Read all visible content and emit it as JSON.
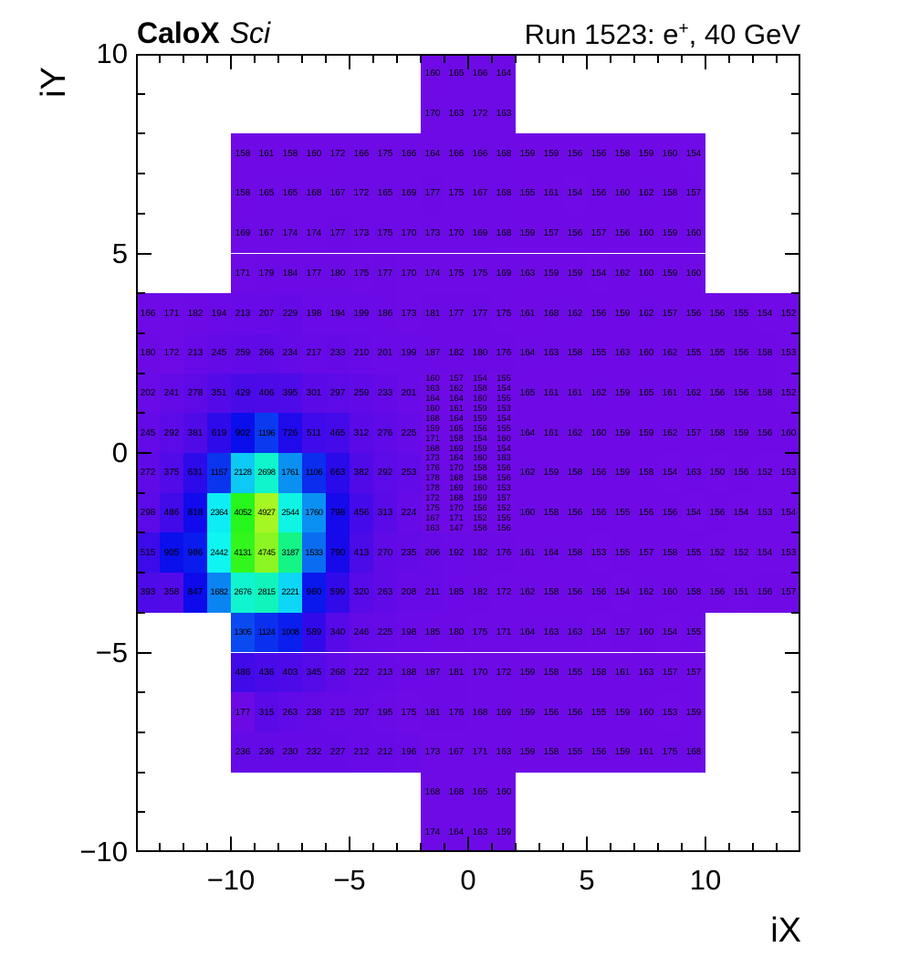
{
  "header": {
    "title_bold": "CaloX",
    "title_italic": "Sci",
    "run_title_prefix": "Run 1523: e",
    "run_title_sup": "+",
    "run_title_suffix": ", 40 GeV"
  },
  "axes": {
    "x_label": "iX",
    "y_label": "iY",
    "x_range": [
      -14,
      14
    ],
    "y_range": [
      -10,
      10
    ],
    "x_ticks": [
      {
        "v": -10,
        "label": "−10"
      },
      {
        "v": -5,
        "label": "−5"
      },
      {
        "v": 0,
        "label": "0"
      },
      {
        "v": 5,
        "label": "5"
      },
      {
        "v": 10,
        "label": "10"
      }
    ],
    "y_ticks": [
      {
        "v": 10,
        "label": "10"
      },
      {
        "v": 5,
        "label": "5"
      },
      {
        "v": 0,
        "label": "0"
      },
      {
        "v": -5,
        "label": "−5"
      },
      {
        "v": -10,
        "label": "−10"
      }
    ]
  },
  "chart_data": {
    "type": "heatmap",
    "title": "Run 1523: e+, 40 GeV",
    "xlabel": "iX",
    "ylabel": "iY",
    "xlim": [
      -14,
      14
    ],
    "ylim": [
      -10,
      10
    ],
    "z_min": 147,
    "z_max": 4927,
    "palette": {
      "description": "violet-blue-cyan-green rainbow",
      "min_hex": "#5711e3",
      "max_hex": "#86ef15",
      "hue_start": 268,
      "hue_span": 185,
      "sat": 92,
      "light_base": 47,
      "light_span": 8
    },
    "bands": [
      {
        "name": "top-cap",
        "x0": -2,
        "y_top": 10,
        "cell_w": 1,
        "cell_h": 1,
        "rows": [
          [
            160,
            165,
            166,
            164
          ],
          [
            170,
            163,
            172,
            163
          ]
        ]
      },
      {
        "name": "upper",
        "x0": -10,
        "y_top": 8,
        "cell_w": 1,
        "cell_h": 1,
        "rows": [
          [
            158,
            161,
            158,
            160,
            172,
            166,
            175,
            166,
            164,
            166,
            166,
            168,
            159,
            159,
            156,
            156,
            158,
            159,
            160,
            154
          ],
          [
            158,
            165,
            165,
            168,
            167,
            172,
            165,
            169,
            177,
            175,
            167,
            168,
            155,
            161,
            154,
            156,
            160,
            162,
            158,
            157
          ],
          [
            169,
            167,
            174,
            174,
            177,
            173,
            175,
            170,
            173,
            170,
            169,
            168,
            159,
            157,
            156,
            157,
            156,
            160,
            159,
            160
          ],
          [
            171,
            179,
            184,
            177,
            180,
            175,
            177,
            170,
            174,
            175,
            175,
            169,
            163,
            159,
            159,
            154,
            162,
            160,
            159,
            160
          ]
        ]
      },
      {
        "name": "wide-upper",
        "x0": -14,
        "y_top": 4,
        "cell_w": 1,
        "cell_h": 1,
        "rows": [
          [
            166,
            171,
            182,
            194,
            213,
            207,
            229,
            198,
            194,
            199,
            186,
            173,
            181,
            177,
            177,
            175,
            161,
            168,
            162,
            156,
            159,
            162,
            157,
            156,
            156,
            155,
            154,
            152
          ],
          [
            180,
            172,
            213,
            245,
            259,
            266,
            234,
            217,
            233,
            210,
            201,
            199,
            187,
            182,
            180,
            176,
            164,
            163,
            158,
            155,
            163,
            160,
            162,
            155,
            155,
            156,
            158,
            153
          ]
        ]
      },
      {
        "name": "mid-left",
        "x0": -14,
        "y_top": 2,
        "cell_w": 1,
        "cell_h": 1,
        "rows": [
          [
            202,
            241,
            278,
            351,
            429,
            406,
            395,
            301,
            297,
            259,
            233,
            201
          ],
          [
            245,
            292,
            381,
            619,
            902,
            1196,
            726,
            511,
            465,
            312,
            276,
            225
          ],
          [
            272,
            375,
            631,
            1157,
            2128,
            2698,
            1761,
            1106,
            663,
            382,
            292,
            253
          ],
          [
            298,
            486,
            818,
            2364,
            4052,
            4927,
            2544,
            1760,
            798,
            456,
            313,
            224
          ]
        ]
      },
      {
        "name": "center-fine",
        "x0": -2,
        "y_top": 2,
        "cell_w": 1,
        "cell_h": 0.25,
        "rows": [
          [
            160,
            157,
            154,
            155
          ],
          [
            163,
            162,
            158,
            154
          ],
          [
            164,
            164,
            160,
            155
          ],
          [
            160,
            161,
            159,
            153
          ],
          [
            168,
            164,
            159,
            154
          ],
          [
            159,
            165,
            156,
            155
          ],
          [
            171,
            158,
            154,
            160
          ],
          [
            168,
            169,
            159,
            154
          ],
          [
            173,
            164,
            160,
            163
          ],
          [
            176,
            170,
            158,
            156
          ],
          [
            178,
            168,
            158,
            156
          ],
          [
            178,
            169,
            160,
            153
          ],
          [
            172,
            168,
            159,
            157
          ],
          [
            175,
            170,
            156,
            152
          ],
          [
            167,
            171,
            152,
            155
          ],
          [
            163,
            147,
            158,
            156
          ]
        ]
      },
      {
        "name": "mid-right",
        "x0": 2,
        "y_top": 2,
        "cell_w": 1,
        "cell_h": 1,
        "rows": [
          [
            165,
            161,
            161,
            162,
            159,
            165,
            161,
            162,
            156,
            156,
            158,
            152
          ],
          [
            164,
            161,
            162,
            160,
            159,
            159,
            162,
            157,
            158,
            159,
            156,
            160
          ],
          [
            162,
            159,
            158,
            156,
            159,
            158,
            154,
            163,
            150,
            156,
            152,
            153
          ],
          [
            160,
            158,
            156,
            156,
            155,
            156,
            156,
            154,
            156,
            154,
            153,
            154
          ]
        ]
      },
      {
        "name": "wide-lower",
        "x0": -14,
        "y_top": -2,
        "cell_w": 1,
        "cell_h": 1,
        "rows": [
          [
            515,
            905,
            986,
            2442,
            4131,
            4745,
            3187,
            1533,
            790,
            413,
            270,
            235,
            206,
            192,
            182,
            176,
            161,
            164,
            158,
            153,
            155,
            157,
            158,
            155,
            152,
            152,
            154,
            153
          ],
          [
            393,
            358,
            847,
            1682,
            2676,
            2815,
            2221,
            960,
            599,
            320,
            263,
            208,
            211,
            185,
            182,
            172,
            162,
            158,
            156,
            156,
            154,
            162,
            160,
            158,
            156,
            151,
            156,
            157
          ]
        ]
      },
      {
        "name": "lower",
        "x0": -10,
        "y_top": -4,
        "cell_w": 1,
        "cell_h": 1,
        "rows": [
          [
            1305,
            1124,
            1008,
            589,
            340,
            246,
            225,
            198,
            185,
            180,
            175,
            171,
            164,
            163,
            163,
            154,
            157,
            160,
            154,
            155
          ],
          [
            486,
            436,
            403,
            345,
            268,
            222,
            213,
            188,
            187,
            181,
            170,
            172,
            159,
            158,
            155,
            158,
            161,
            163,
            157,
            157
          ],
          [
            177,
            315,
            263,
            238,
            215,
            207,
            195,
            175,
            181,
            176,
            168,
            169,
            159,
            156,
            156,
            155,
            159,
            160,
            153,
            159
          ],
          [
            236,
            236,
            230,
            232,
            227,
            212,
            212,
            196,
            173,
            167,
            171,
            163,
            159,
            158,
            155,
            156,
            159,
            161,
            175,
            168
          ]
        ]
      },
      {
        "name": "bottom-cap",
        "x0": -2,
        "y_top": -8,
        "cell_w": 1,
        "cell_h": 1,
        "rows": [
          [
            168,
            168,
            165,
            160
          ],
          [
            174,
            164,
            163,
            159
          ]
        ]
      }
    ]
  }
}
